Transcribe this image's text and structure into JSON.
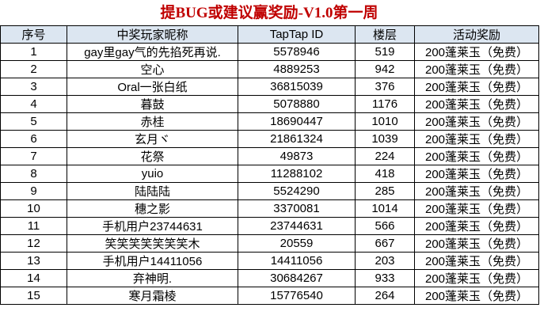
{
  "title": "提BUG或建议赢奖励-V1.0第一周",
  "table": {
    "header": [
      "序号",
      "中奖玩家昵称",
      "TapTap ID",
      "楼层",
      "活动奖励"
    ],
    "rows": [
      [
        "1",
        "gay里gay气的先掐死再说.",
        "5578946",
        "519",
        "200蓬莱玉（免费）"
      ],
      [
        "2",
        "空心",
        "4889253",
        "942",
        "200蓬莱玉（免费）"
      ],
      [
        "3",
        "Oral一张白纸",
        "36815039",
        "376",
        "200蓬莱玉（免费）"
      ],
      [
        "4",
        "暮鼓",
        "5078880",
        "1176",
        "200蓬莱玉（免费）"
      ],
      [
        "5",
        "赤桂",
        "18690447",
        "1010",
        "200蓬莱玉（免费）"
      ],
      [
        "6",
        "玄月ヾ",
        "21861324",
        "1039",
        "200蓬莱玉（免费）"
      ],
      [
        "7",
        "花祭",
        "49873",
        "224",
        "200蓬莱玉（免费）"
      ],
      [
        "8",
        "yuio",
        "11288102",
        "418",
        "200蓬莱玉（免费）"
      ],
      [
        "9",
        "陆陆陆",
        "5524290",
        "285",
        "200蓬莱玉（免费）"
      ],
      [
        "10",
        "穗之影",
        "3370081",
        "1014",
        "200蓬莱玉（免费）"
      ],
      [
        "11",
        "手机用户23744631",
        "23744631",
        "566",
        "200蓬莱玉（免费）"
      ],
      [
        "12",
        "笑笑笑笑笑笑笑木",
        "20559",
        "667",
        "200蓬莱玉（免费）"
      ],
      [
        "13",
        "手机用户14411056",
        "14411056",
        "203",
        "200蓬莱玉（免费）"
      ],
      [
        "14",
        "弃神明.",
        "30684267",
        "933",
        "200蓬莱玉（免费）"
      ],
      [
        "15",
        "寒月霜棱",
        "15776540",
        "264",
        "200蓬莱玉（免费）"
      ]
    ]
  }
}
